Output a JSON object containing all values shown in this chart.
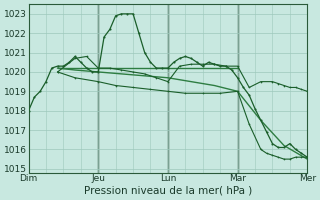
{
  "title": "Pression niveau de la mer( hPa )",
  "ylabel_values": [
    1015,
    1016,
    1017,
    1018,
    1019,
    1020,
    1021,
    1022,
    1023
  ],
  "ylim": [
    1014.8,
    1023.5
  ],
  "xlim": [
    0,
    48
  ],
  "day_ticks": [
    0,
    12,
    24,
    36,
    48
  ],
  "day_labels": [
    "Dim",
    "Jeu",
    "Lun",
    "Mar",
    "Mer"
  ],
  "bg_color": "#c8e8e0",
  "grid_color": "#9dc8bc",
  "line_dark": "#1a5e2a",
  "line_mid": "#2e7d42",
  "vline_color": "#2a4a35",
  "line1_x": [
    0,
    1,
    2,
    3,
    4,
    5,
    6,
    7,
    8,
    9,
    10,
    11,
    12,
    13,
    14,
    15,
    16,
    17,
    18,
    19,
    20,
    21,
    22,
    23,
    24,
    25,
    26,
    27,
    28,
    29,
    30,
    31,
    32,
    33,
    34,
    35,
    36,
    37,
    38,
    39,
    40,
    41,
    42,
    43,
    44,
    45,
    46,
    47,
    48
  ],
  "line1_y": [
    1018.0,
    1018.7,
    1019.0,
    1019.5,
    1020.2,
    1020.3,
    1020.3,
    1020.5,
    1020.8,
    1020.5,
    1020.2,
    1020.0,
    1020.0,
    1021.8,
    1022.2,
    1022.9,
    1023.0,
    1023.0,
    1023.0,
    1022.0,
    1021.0,
    1020.5,
    1020.2,
    1020.2,
    1020.2,
    1020.5,
    1020.7,
    1020.8,
    1020.7,
    1020.5,
    1020.3,
    1020.5,
    1020.4,
    1020.3,
    1020.3,
    1020.1,
    1019.7,
    1019.2,
    1018.8,
    1018.1,
    1017.5,
    1016.9,
    1016.3,
    1016.1,
    1016.1,
    1016.3,
    1016.0,
    1015.8,
    1015.6
  ],
  "line2_x": [
    5,
    6,
    8,
    10,
    12,
    14,
    16,
    18,
    20,
    22,
    24,
    26,
    28,
    30,
    32,
    34,
    36
  ],
  "line2_y": [
    1020.2,
    1020.2,
    1020.2,
    1020.2,
    1020.2,
    1020.2,
    1020.2,
    1020.2,
    1020.2,
    1020.2,
    1020.2,
    1020.2,
    1020.2,
    1020.2,
    1020.2,
    1020.2,
    1020.2
  ],
  "line3_x": [
    5,
    8,
    12,
    16,
    20,
    24,
    28,
    32,
    36,
    40,
    44,
    48
  ],
  "line3_y": [
    1020.2,
    1020.1,
    1020.0,
    1019.9,
    1019.8,
    1019.7,
    1019.5,
    1019.3,
    1019.0,
    1017.5,
    1016.2,
    1015.5
  ],
  "line4_x": [
    5,
    8,
    10,
    12,
    14,
    16,
    18,
    20,
    22,
    24,
    26,
    28,
    30,
    32,
    34,
    36,
    38,
    40,
    42,
    43,
    44,
    45,
    46,
    47,
    48
  ],
  "line4_y": [
    1020.0,
    1020.7,
    1020.8,
    1020.2,
    1020.2,
    1020.1,
    1020.0,
    1019.9,
    1019.7,
    1019.5,
    1020.3,
    1020.4,
    1020.4,
    1020.4,
    1020.3,
    1020.3,
    1019.2,
    1019.5,
    1019.5,
    1019.4,
    1019.3,
    1019.2,
    1019.2,
    1019.1,
    1019.0
  ],
  "line5_x": [
    5,
    8,
    12,
    15,
    18,
    21,
    24,
    27,
    30,
    33,
    36,
    38,
    40,
    41,
    42,
    43,
    44,
    45,
    46,
    47,
    48
  ],
  "line5_y": [
    1020.0,
    1019.7,
    1019.5,
    1019.3,
    1019.2,
    1019.1,
    1019.0,
    1018.9,
    1018.9,
    1018.9,
    1019.0,
    1017.3,
    1016.0,
    1015.8,
    1015.7,
    1015.6,
    1015.5,
    1015.5,
    1015.6,
    1015.6,
    1015.6
  ],
  "vlines": [
    12,
    24,
    36
  ]
}
